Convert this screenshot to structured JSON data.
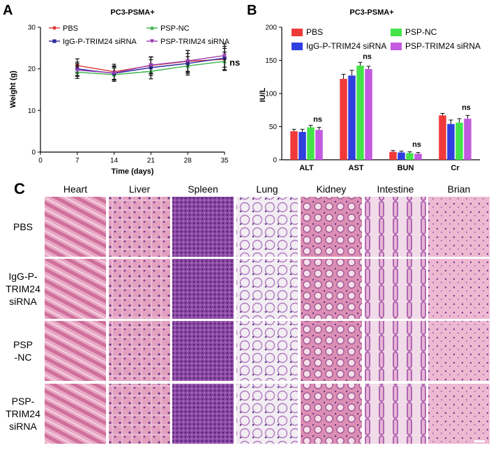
{
  "panel_a": {
    "label": "A",
    "chart_data": {
      "type": "line",
      "title": "PC3-PSMA+",
      "xlabel": "Time (days)",
      "ylabel": "Weight (g)",
      "x": [
        7,
        14,
        21,
        28,
        35
      ],
      "xticks": [
        0,
        7,
        14,
        21,
        28,
        35
      ],
      "xlim": [
        0,
        35
      ],
      "yticks": [
        0,
        10,
        20,
        30
      ],
      "ylim": [
        0,
        30
      ],
      "annotation": "ns",
      "series": [
        {
          "name": "PBS",
          "color": "#d93a3a",
          "marker": "circle",
          "values": [
            20.8,
            19.3,
            20.8,
            21.8,
            22.3
          ],
          "err": [
            1.6,
            1.8,
            2.0,
            2.6,
            2.6
          ]
        },
        {
          "name": "PSP-NC",
          "color": "#3ab34a",
          "marker": "triangle",
          "values": [
            19.2,
            18.6,
            19.4,
            20.7,
            21.8
          ],
          "err": [
            1.5,
            1.6,
            1.8,
            2.2,
            2.2
          ]
        },
        {
          "name": "IgG-P-TRIM24 siRNA",
          "color": "#2b2b9a",
          "marker": "square",
          "values": [
            20.0,
            18.9,
            20.3,
            21.3,
            22.6
          ],
          "err": [
            1.6,
            1.6,
            1.9,
            2.4,
            2.8
          ]
        },
        {
          "name": "PSP-TRIM24 siRNA",
          "color": "#9a3cb0",
          "marker": "triangle-down",
          "values": [
            19.7,
            19.0,
            20.9,
            21.9,
            23.2
          ],
          "err": [
            1.5,
            1.7,
            2.0,
            2.5,
            2.8
          ]
        }
      ]
    }
  },
  "panel_b": {
    "label": "B",
    "chart_data": {
      "type": "bar",
      "title": "PC3-PSMA+",
      "ylabel": "IU/L",
      "xlabel": "",
      "categories": [
        "ALT",
        "AST",
        "BUN",
        "Cr"
      ],
      "yticks": [
        0,
        50,
        100,
        150,
        200
      ],
      "ylim": [
        0,
        200
      ],
      "annotations": [
        "ns",
        "ns",
        "ns",
        "ns"
      ],
      "series": [
        {
          "name": "PBS",
          "color": "#f03a3a",
          "values": [
            43,
            122,
            12,
            67
          ],
          "err": [
            3,
            7,
            2,
            3
          ]
        },
        {
          "name": "IgG-P-TRIM24 siRNA",
          "color": "#2f3fe0",
          "values": [
            42,
            127,
            11,
            54
          ],
          "err": [
            4,
            8,
            2,
            6
          ]
        },
        {
          "name": "PSP-NC",
          "color": "#44e34a",
          "values": [
            49,
            142,
            10,
            56
          ],
          "err": [
            3,
            5,
            2,
            6
          ]
        },
        {
          "name": "PSP-TRIM24 siRNA",
          "color": "#c45ae0",
          "values": [
            45,
            137,
            9,
            62
          ],
          "err": [
            4,
            4,
            2,
            5
          ]
        }
      ]
    }
  },
  "panel_c": {
    "label": "C",
    "columns": [
      "Heart",
      "Liver",
      "Spleen",
      "Lung",
      "Kidney",
      "Intestine",
      "Brian"
    ],
    "rows": [
      {
        "lines": [
          "PBS"
        ]
      },
      {
        "lines": [
          "IgG-P-",
          "TRIM24",
          "siRNA"
        ]
      },
      {
        "lines": [
          "PSP",
          "-NC"
        ]
      },
      {
        "lines": [
          "PSP-",
          "TRIM24",
          "siRNA"
        ]
      }
    ]
  }
}
